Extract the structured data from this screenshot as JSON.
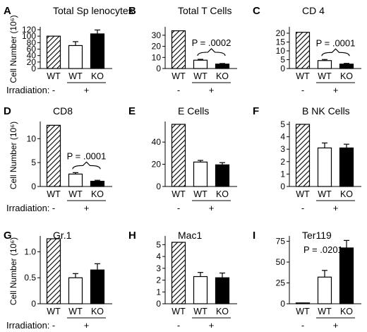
{
  "figure": {
    "condition_label": "Irradiation:",
    "cell_number_label": "Cell Number (10⁶)",
    "group_minus": "-",
    "group_plus": "+",
    "colors": {
      "hatched": "#000000",
      "open": "#ffffff",
      "solid": "#000000"
    }
  },
  "chart_data": [
    {
      "letter": "A",
      "title": "Total Sp lenocytes",
      "type": "bar",
      "categories": [
        "WT",
        "WT",
        "KO"
      ],
      "fills": [
        "hatched",
        "open",
        "solid"
      ],
      "values": [
        100,
        71,
        107
      ],
      "errors": [
        0,
        12,
        12
      ],
      "ylim": [
        0,
        120
      ],
      "yticks": [
        0,
        20,
        40,
        60,
        80,
        100,
        120
      ],
      "pvalue": ""
    },
    {
      "letter": "B",
      "title": "Total T Cells",
      "type": "bar",
      "categories": [
        "WT",
        "WT",
        "KO"
      ],
      "fills": [
        "hatched",
        "open",
        "solid"
      ],
      "values": [
        34,
        7.5,
        4
      ],
      "errors": [
        0,
        0.8,
        0.5
      ],
      "ylim": [
        0,
        35
      ],
      "yticks": [
        0,
        10,
        20,
        30
      ],
      "pvalue": "P = .0002"
    },
    {
      "letter": "C",
      "title": "CD 4",
      "type": "bar",
      "categories": [
        "WT",
        "WT",
        "KO"
      ],
      "fills": [
        "hatched",
        "open",
        "solid"
      ],
      "values": [
        20.5,
        4.5,
        2.5
      ],
      "errors": [
        0,
        0.6,
        0.4
      ],
      "ylim": [
        0,
        22
      ],
      "yticks": [
        0,
        5,
        10,
        15,
        20
      ],
      "pvalue": "P = .0001"
    },
    {
      "letter": "D",
      "title": "CD8",
      "type": "bar",
      "categories": [
        "WT",
        "WT",
        "KO"
      ],
      "fills": [
        "hatched",
        "open",
        "solid"
      ],
      "values": [
        12.8,
        2.6,
        1.1
      ],
      "errors": [
        0,
        0.3,
        0.2
      ],
      "ylim": [
        0,
        13
      ],
      "yticks": [
        0,
        5,
        10
      ],
      "pvalue": "P = .0001"
    },
    {
      "letter": "E",
      "title": "E Cells",
      "type": "bar",
      "categories": [
        "WT",
        "WT",
        "KO"
      ],
      "fills": [
        "hatched",
        "open",
        "solid"
      ],
      "values": [
        56,
        22,
        19.5
      ],
      "errors": [
        0,
        1.5,
        2
      ],
      "ylim": [
        0,
        56
      ],
      "yticks": [
        0,
        20,
        40
      ],
      "pvalue": ""
    },
    {
      "letter": "F",
      "title": "B NK Cells",
      "type": "bar",
      "categories": [
        "WT",
        "WT",
        "KO"
      ],
      "fills": [
        "hatched",
        "open",
        "solid"
      ],
      "values": [
        5,
        3.1,
        3.1
      ],
      "errors": [
        0,
        0.4,
        0.3
      ],
      "ylim": [
        0,
        5
      ],
      "yticks": [
        0,
        1,
        2,
        3,
        4,
        5
      ],
      "pvalue": ""
    },
    {
      "letter": "G",
      "title": "Gr.1",
      "type": "bar",
      "categories": [
        "WT",
        "WT",
        "KO"
      ],
      "fills": [
        "hatched",
        "open",
        "solid"
      ],
      "values": [
        1.25,
        0.5,
        0.65
      ],
      "errors": [
        0,
        0.08,
        0.12
      ],
      "ylim": [
        0,
        1.25
      ],
      "yticks": [
        0,
        0.5,
        1.0
      ],
      "yticklabels": [
        "0",
        "0.5",
        "1.0"
      ],
      "pvalue": ""
    },
    {
      "letter": "H",
      "title": "Mac1",
      "type": "bar",
      "categories": [
        "WT",
        "WT",
        "KO"
      ],
      "fills": [
        "hatched",
        "open",
        "solid"
      ],
      "values": [
        5.2,
        2.3,
        2.2
      ],
      "errors": [
        0,
        0.35,
        0.4
      ],
      "ylim": [
        0,
        5.5
      ],
      "yticks": [
        0,
        1,
        2,
        3,
        4,
        5
      ],
      "pvalue": ""
    },
    {
      "letter": "I",
      "title": "Ter119",
      "type": "bar",
      "categories": [
        "WT",
        "WT",
        "KO"
      ],
      "fills": [
        "open",
        "open",
        "solid"
      ],
      "values": [
        1,
        32,
        67
      ],
      "errors": [
        0,
        8,
        9
      ],
      "ylim": [
        0,
        78
      ],
      "yticks": [
        0,
        25,
        50,
        75
      ],
      "pvalue": "P = .0201"
    }
  ]
}
